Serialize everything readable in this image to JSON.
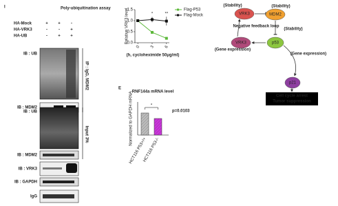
{
  "panel_i": {
    "label": "I",
    "title": "Poly-ubiquitination assay",
    "conditions": [
      {
        "name": "HA-Mock",
        "signs": [
          "+",
          "+",
          "-"
        ]
      },
      {
        "name": "HA-VRK3",
        "signs": [
          "-",
          "-",
          "+"
        ]
      },
      {
        "name": "HA-UB",
        "signs": [
          "-",
          "+",
          "+"
        ]
      }
    ],
    "ip_label": "IP : IgG, MDM2",
    "input_label": "Input 3%",
    "blots": [
      "IB : UB",
      "IB : MDM2",
      "IB : UB",
      "IB : MDM2",
      "IB : VRK3",
      "IB : GAPDH",
      "IgG"
    ]
  },
  "chart_data": [
    {
      "type": "line",
      "y_label": "Relative VRK3 level",
      "x_label": "(h, cycloheximide 50μg/ml)",
      "x": [
        0,
        3,
        6
      ],
      "xlim": [
        -0.6,
        6.6
      ],
      "xticks": [
        0,
        3,
        6
      ],
      "ylim": [
        0,
        1.5
      ],
      "yticks": [
        {
          "value": 0,
          "label": "0.0"
        },
        {
          "value": 0.5,
          "label": "0.5"
        },
        {
          "value": 1,
          "label": "1.0"
        },
        {
          "value": 1.5,
          "label": "1.5"
        }
      ],
      "series": [
        {
          "name": "Flag-P53",
          "color": "#5cb83a",
          "values": [
            1.0,
            0.47,
            0.2
          ],
          "errors": [
            0,
            0.04,
            0.06
          ]
        },
        {
          "name": "Flag-Mock",
          "color": "#111111",
          "values": [
            1.0,
            1.05,
            0.98
          ],
          "errors": [
            0,
            0.12,
            0.2
          ]
        }
      ],
      "annotations": [
        {
          "text": "*",
          "x": 3
        },
        {
          "text": "**",
          "x": 6
        }
      ],
      "legend": "upper right"
    },
    {
      "type": "bar",
      "panel_label": "E",
      "title": "RNF144a mRNA level",
      "y_label": "Normalized to GAPDH mRNA",
      "categories": [
        "HCT116 P53+/+",
        "HCT116 P53-/-"
      ],
      "values": [
        1.0,
        0.75
      ],
      "colors": [
        "#bdbdbd",
        "#cc33dd"
      ],
      "ylim": [
        0,
        1.5
      ],
      "annotations": [
        "*",
        "p=0.0103"
      ]
    }
  ],
  "diagram": {
    "nodes": [
      {
        "label": "VRK3",
        "color": "#d9534f"
      },
      {
        "label": "MDM2",
        "color": "#f0a030"
      },
      {
        "label": "VRK3",
        "color": "#b04a7a"
      },
      {
        "label": "p53",
        "color": "#8cc63f"
      },
      {
        "label": "p21",
        "color": "#8e3fa0"
      }
    ],
    "edge_labels": [
      "(Stability)",
      "(Stability)",
      "(Stability)",
      "Negative feedback loop",
      "(Gene expression)",
      "(Gene expression)"
    ],
    "outcome": [
      "Cell cycle arrest",
      "Tumor suppression"
    ]
  }
}
